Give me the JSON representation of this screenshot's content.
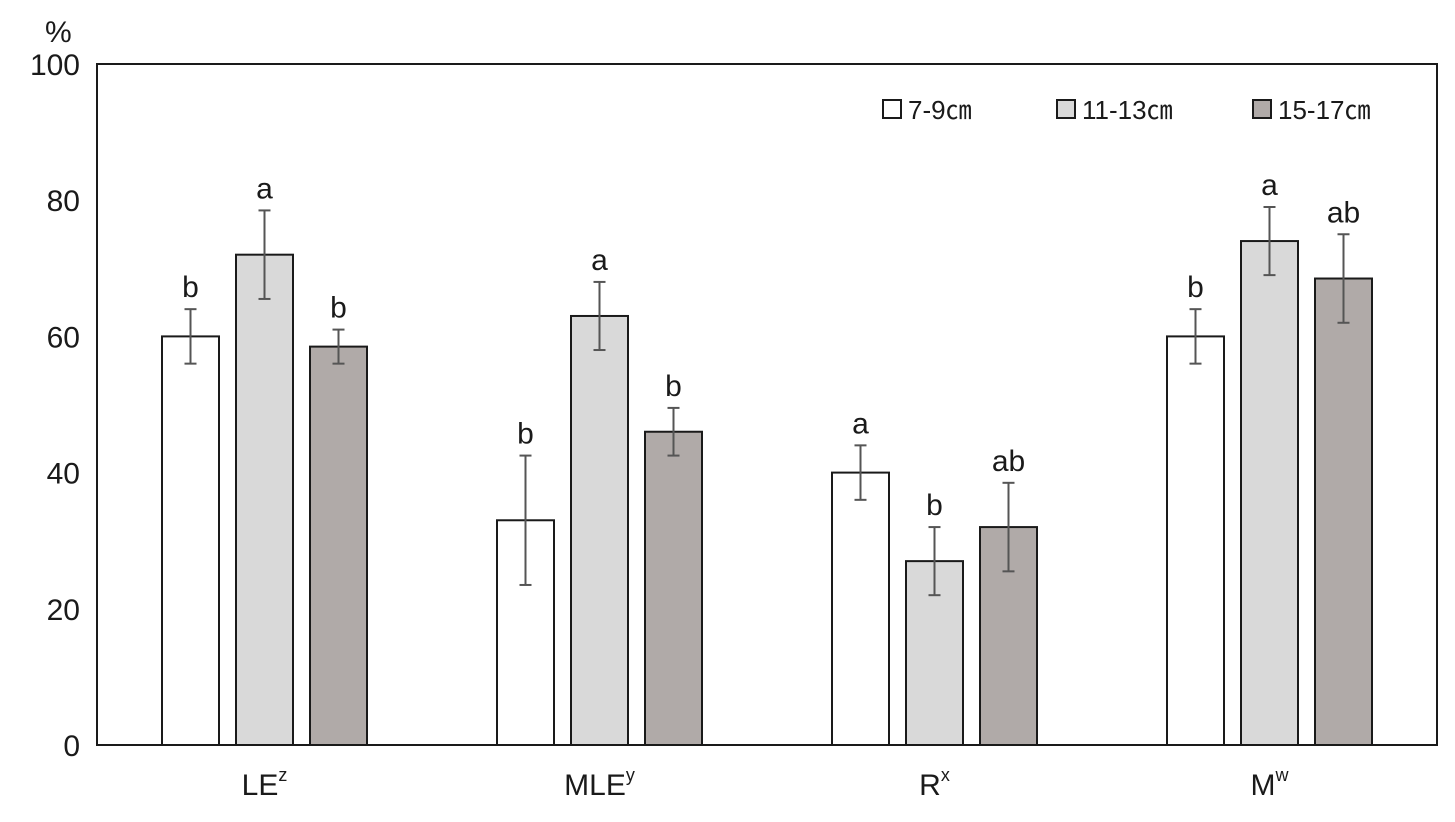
{
  "chart_data": {
    "type": "bar",
    "y_unit": "%",
    "ylim": [
      0,
      100
    ],
    "yticks": [
      0,
      20,
      40,
      60,
      80,
      100
    ],
    "grid": false,
    "legend_position": "top-right",
    "categories": [
      {
        "base": "LE",
        "sup": "z"
      },
      {
        "base": "MLE",
        "sup": "y"
      },
      {
        "base": "R",
        "sup": "x"
      },
      {
        "base": "M",
        "sup": "w"
      }
    ],
    "series": [
      {
        "name": "7-9㎝",
        "color": "#ffffff",
        "values": [
          60,
          33,
          40,
          60
        ],
        "errors": [
          4,
          9.5,
          4,
          4
        ],
        "letters": [
          "b",
          "b",
          "a",
          "b"
        ]
      },
      {
        "name": "11-13㎝",
        "color": "#d9d9d9",
        "values": [
          72,
          63,
          27,
          74
        ],
        "errors": [
          6.5,
          5,
          5,
          5
        ],
        "letters": [
          "a",
          "a",
          "b",
          "a"
        ]
      },
      {
        "name": "15-17㎝",
        "color": "#b0aaa8",
        "values": [
          58.5,
          46,
          32,
          68.5
        ],
        "errors": [
          2.5,
          3.5,
          6.5,
          6.5
        ],
        "letters": [
          "b",
          "b",
          "ab",
          "ab"
        ]
      }
    ]
  }
}
